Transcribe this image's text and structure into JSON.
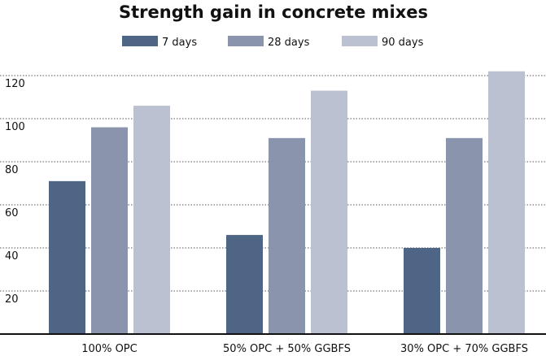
{
  "chart_data": {
    "type": "bar",
    "title": "Strength gain in concrete mixes",
    "xlabel": "",
    "ylabel": "",
    "categories": [
      "100% OPC",
      "50% OPC + 50% GGBFS",
      "30% OPC + 70% GGBFS"
    ],
    "series": [
      {
        "name": "7 days",
        "values": [
          71,
          46,
          40
        ],
        "color": "#4f6585"
      },
      {
        "name": "28 days",
        "values": [
          96,
          91,
          91
        ],
        "color": "#8a95ad"
      },
      {
        "name": "90 days",
        "values": [
          106,
          113,
          122
        ],
        "color": "#bcc1d1"
      }
    ],
    "yticks": [
      20,
      40,
      60,
      80,
      100,
      120
    ],
    "ylim": [
      0,
      120
    ],
    "grid": true,
    "legend_position": "top-center"
  }
}
